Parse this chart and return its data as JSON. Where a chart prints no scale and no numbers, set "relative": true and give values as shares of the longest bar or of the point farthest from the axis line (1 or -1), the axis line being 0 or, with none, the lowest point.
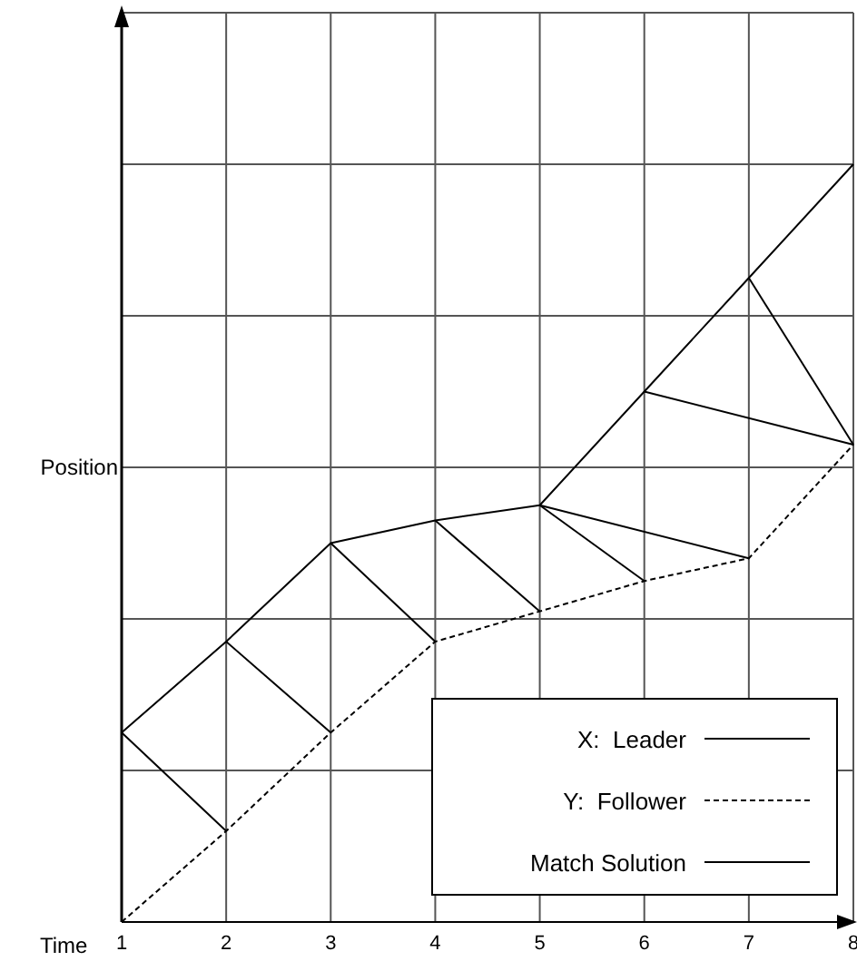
{
  "chart_data": {
    "type": "line",
    "relative": true,
    "xlabel": "Time",
    "ylabel": "Position",
    "x": [
      1,
      2,
      3,
      4,
      5,
      6,
      7,
      8
    ],
    "xlim": [
      1,
      8
    ],
    "xticks": [
      1,
      2,
      3,
      4,
      5,
      6,
      7,
      8
    ],
    "grid": true,
    "legend": "bottom right",
    "tick_labels": "x",
    "series": [
      {
        "name": "X:  Leader",
        "color": "#000000",
        "line_style": "solid",
        "values": [
          0.25,
          0.37,
          0.5,
          0.53,
          0.55,
          0.7,
          0.85,
          1
        ]
      },
      {
        "name": "Y:  Follower",
        "color": "#000000",
        "line_style": "dashed",
        "values": [
          0,
          0.12,
          0.25,
          0.37,
          0.41,
          0.45,
          0.48,
          0.63
        ]
      },
      {
        "name": "Match Solution",
        "color": "#000000",
        "line_style": "solid",
        "x": [
          1,
          2
        ],
        "values": [
          0.25,
          0.12
        ]
      },
      {
        "color": "#000000",
        "line_style": "solid",
        "x": [
          2,
          3
        ],
        "values": [
          0.37,
          0.25
        ]
      },
      {
        "color": "#000000",
        "line_style": "solid",
        "x": [
          3,
          4
        ],
        "values": [
          0.5,
          0.37
        ]
      },
      {
        "color": "#000000",
        "line_style": "solid",
        "x": [
          4,
          5
        ],
        "values": [
          0.53,
          0.41
        ]
      },
      {
        "color": "#000000",
        "line_style": "solid",
        "x": [
          5,
          6
        ],
        "values": [
          0.55,
          0.45
        ]
      },
      {
        "color": "#000000",
        "line_style": "solid",
        "x": [
          5,
          7
        ],
        "values": [
          0.55,
          0.48
        ]
      },
      {
        "color": "#000000",
        "line_style": "solid",
        "x": [
          6,
          8
        ],
        "values": [
          0.7,
          0.63
        ]
      },
      {
        "color": "#000000",
        "line_style": "solid",
        "x": [
          7,
          8
        ],
        "values": [
          0.85,
          0.63
        ]
      }
    ]
  }
}
